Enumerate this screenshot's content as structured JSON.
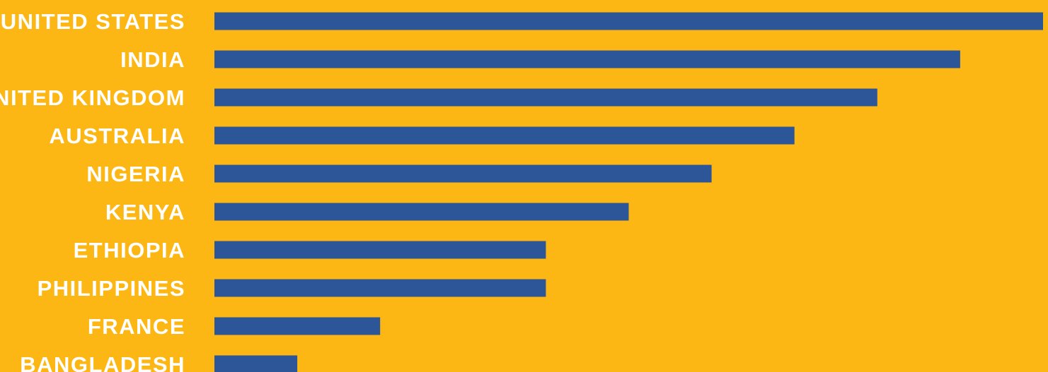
{
  "colors": {
    "background": "#FCB714",
    "bar": "#2D5699",
    "label": "#FFFFFF"
  },
  "chart_data": {
    "type": "bar",
    "orientation": "horizontal",
    "categories": [
      "UNITED STATES",
      "INDIA",
      "UNITED KINGDOM",
      "AUSTRALIA",
      "NIGERIA",
      "KENYA",
      "ETHIOPIA",
      "PHILIPPINES",
      "FRANCE",
      "BANGLADESH"
    ],
    "values": [
      10,
      9,
      8,
      7,
      6,
      5,
      4,
      4,
      2,
      1
    ],
    "xlim": [
      0,
      10
    ],
    "title": "",
    "xlabel": "",
    "ylabel": "",
    "grid": false,
    "legend": "none"
  }
}
